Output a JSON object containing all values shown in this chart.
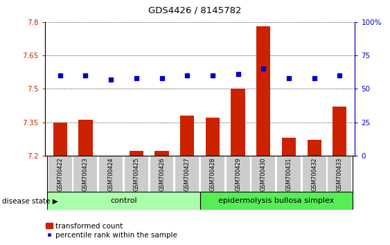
{
  "title": "GDS4426 / 8145782",
  "samples": [
    "GSM700422",
    "GSM700423",
    "GSM700424",
    "GSM700425",
    "GSM700426",
    "GSM700427",
    "GSM700428",
    "GSM700429",
    "GSM700430",
    "GSM700431",
    "GSM700432",
    "GSM700433"
  ],
  "transformed_count": [
    7.35,
    7.36,
    7.2,
    7.22,
    7.22,
    7.38,
    7.37,
    7.5,
    7.78,
    7.28,
    7.27,
    7.42
  ],
  "percentile_rank": [
    60,
    60,
    57,
    58,
    58,
    60,
    60,
    61,
    65,
    58,
    58,
    60
  ],
  "ylim_left": [
    7.2,
    7.8
  ],
  "ylim_right": [
    0,
    100
  ],
  "yticks_left": [
    7.2,
    7.35,
    7.5,
    7.65,
    7.8
  ],
  "yticks_right": [
    0,
    25,
    50,
    75,
    100
  ],
  "bar_color": "#cc2200",
  "dot_color": "#0000cc",
  "control_samples": 6,
  "control_label": "control",
  "disease_label": "epidermolysis bullosa simplex",
  "disease_state_label": "disease state",
  "legend_bar_label": "transformed count",
  "legend_dot_label": "percentile rank within the sample",
  "control_color": "#aaffaa",
  "disease_color": "#55ee55",
  "sample_bg_color": "#cccccc",
  "sample_border_color": "#ffffff"
}
